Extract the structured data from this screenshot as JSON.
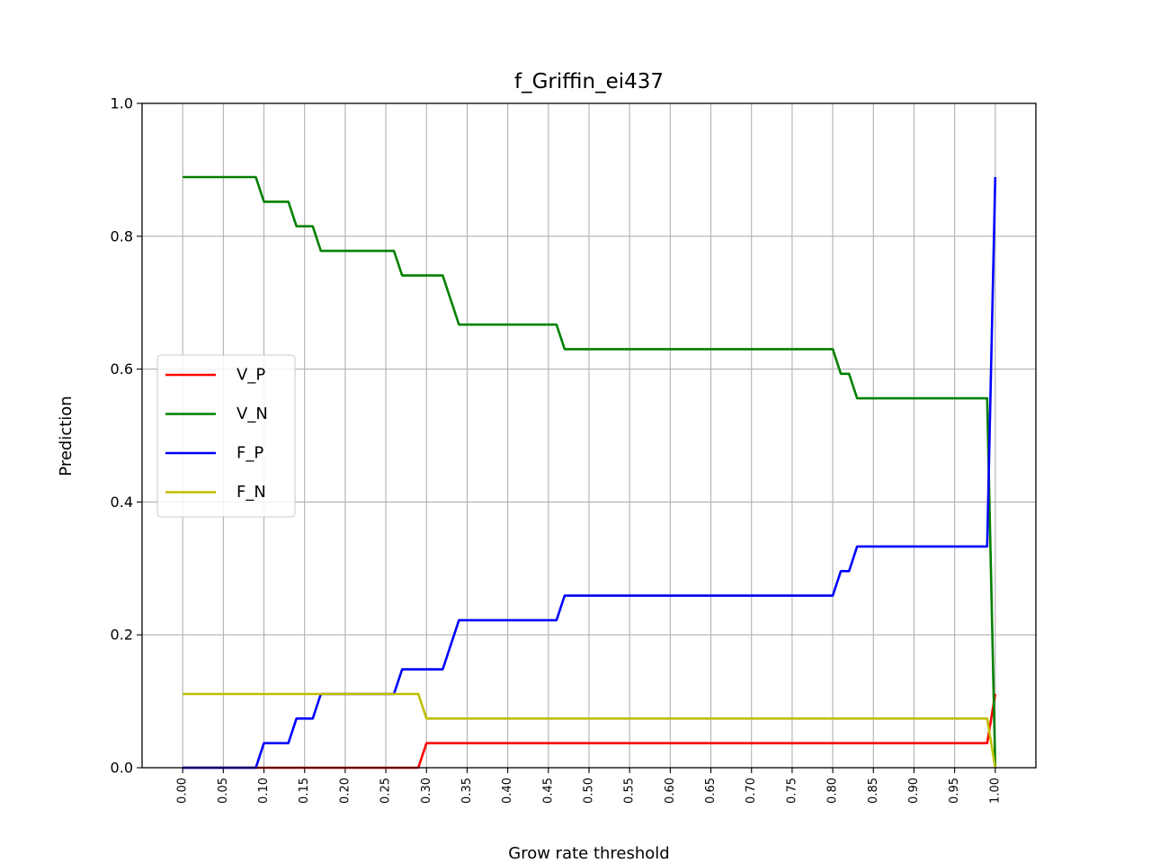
{
  "chart_data": {
    "type": "line",
    "title": "f_Griffin_ei437",
    "xlabel": "Grow rate threshold",
    "ylabel": "Prediction",
    "xlim": [
      -0.05,
      1.05
    ],
    "ylim": [
      0,
      1
    ],
    "grid": true,
    "legend_position": "center-left",
    "x_ticks": [
      "0.00",
      "0.05",
      "0.10",
      "0.15",
      "0.20",
      "0.25",
      "0.30",
      "0.35",
      "0.40",
      "0.45",
      "0.50",
      "0.55",
      "0.60",
      "0.65",
      "0.70",
      "0.75",
      "0.80",
      "0.85",
      "0.90",
      "0.95",
      "1.00"
    ],
    "y_ticks": [
      "0.0",
      "0.2",
      "0.4",
      "0.6",
      "0.8",
      "1.0"
    ],
    "series": [
      {
        "name": "V_P",
        "color": "#ff0000",
        "points": [
          [
            0.0,
            0.0
          ],
          [
            0.29,
            0.0
          ],
          [
            0.3,
            0.037
          ],
          [
            0.99,
            0.037
          ],
          [
            1.0,
            0.111
          ]
        ]
      },
      {
        "name": "V_N",
        "color": "#008000",
        "points": [
          [
            0.0,
            0.889
          ],
          [
            0.09,
            0.889
          ],
          [
            0.1,
            0.852
          ],
          [
            0.13,
            0.852
          ],
          [
            0.14,
            0.815
          ],
          [
            0.16,
            0.815
          ],
          [
            0.17,
            0.778
          ],
          [
            0.26,
            0.778
          ],
          [
            0.27,
            0.741
          ],
          [
            0.32,
            0.741
          ],
          [
            0.34,
            0.667
          ],
          [
            0.46,
            0.667
          ],
          [
            0.47,
            0.63
          ],
          [
            0.8,
            0.63
          ],
          [
            0.81,
            0.593
          ],
          [
            0.82,
            0.593
          ],
          [
            0.83,
            0.556
          ],
          [
            0.99,
            0.556
          ],
          [
            1.0,
            0.0
          ]
        ]
      },
      {
        "name": "F_P",
        "color": "#0000ff",
        "points": [
          [
            0.0,
            0.0
          ],
          [
            0.09,
            0.0
          ],
          [
            0.1,
            0.037
          ],
          [
            0.13,
            0.037
          ],
          [
            0.14,
            0.074
          ],
          [
            0.16,
            0.074
          ],
          [
            0.17,
            0.111
          ],
          [
            0.26,
            0.111
          ],
          [
            0.27,
            0.148
          ],
          [
            0.32,
            0.148
          ],
          [
            0.34,
            0.222
          ],
          [
            0.46,
            0.222
          ],
          [
            0.47,
            0.259
          ],
          [
            0.8,
            0.259
          ],
          [
            0.81,
            0.296
          ],
          [
            0.82,
            0.296
          ],
          [
            0.83,
            0.333
          ],
          [
            0.99,
            0.333
          ],
          [
            1.0,
            0.889
          ]
        ]
      },
      {
        "name": "F_N",
        "color": "#bfbf00",
        "points": [
          [
            0.0,
            0.111
          ],
          [
            0.29,
            0.111
          ],
          [
            0.3,
            0.074
          ],
          [
            0.99,
            0.074
          ],
          [
            1.0,
            0.0
          ]
        ]
      }
    ]
  }
}
